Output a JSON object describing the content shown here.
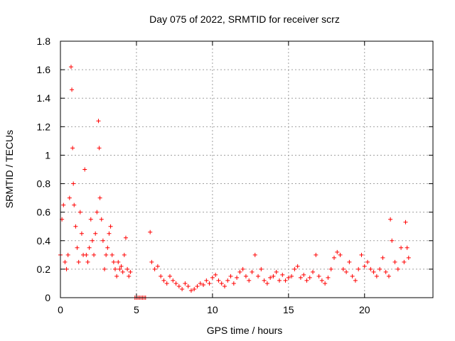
{
  "chart_data": {
    "type": "scatter",
    "title": "Day 075 of 2022, SRMTID for receiver scrz",
    "xlabel": "GPS time / hours",
    "ylabel": "SRMTID / TECUs",
    "xlim": [
      0,
      24.5
    ],
    "ylim": [
      0,
      1.8
    ],
    "xticks": [
      0,
      5,
      10,
      15,
      20
    ],
    "yticks": [
      0,
      0.2,
      0.4,
      0.6,
      0.8,
      1,
      1.2,
      1.4,
      1.6,
      1.8
    ],
    "xtick_labels": [
      "0",
      "5",
      "10",
      "15",
      "20"
    ],
    "ytick_labels": [
      "0",
      "0.2",
      "0.4",
      "0.6",
      "0.8",
      "1",
      "1.2",
      "1.4",
      "1.6",
      "1.8"
    ],
    "grid": true,
    "marker": "plus",
    "color": "#ff0000",
    "series": [
      {
        "name": "SRMTID",
        "x": [
          0.0,
          0.1,
          0.2,
          0.3,
          0.4,
          0.5,
          0.6,
          0.7,
          0.75,
          0.8,
          0.85,
          0.9,
          1.0,
          1.1,
          1.2,
          1.3,
          1.4,
          1.5,
          1.6,
          1.7,
          1.8,
          1.9,
          2.0,
          2.1,
          2.2,
          2.3,
          2.4,
          2.5,
          2.55,
          2.6,
          2.7,
          2.8,
          2.9,
          3.0,
          3.1,
          3.2,
          3.3,
          3.4,
          3.5,
          3.6,
          3.7,
          3.8,
          3.9,
          4.0,
          4.1,
          4.2,
          4.3,
          4.4,
          4.5,
          4.6,
          4.9,
          5.0,
          5.1,
          5.2,
          5.3,
          5.4,
          5.5,
          5.6,
          5.9,
          6.0,
          6.2,
          6.4,
          6.6,
          6.8,
          7.0,
          7.2,
          7.4,
          7.6,
          7.8,
          8.0,
          8.2,
          8.4,
          8.6,
          8.8,
          9.0,
          9.2,
          9.4,
          9.6,
          9.8,
          10.0,
          10.2,
          10.4,
          10.6,
          10.8,
          11.0,
          11.2,
          11.4,
          11.6,
          11.8,
          12.0,
          12.2,
          12.4,
          12.6,
          12.8,
          13.0,
          13.2,
          13.4,
          13.6,
          13.8,
          14.0,
          14.2,
          14.4,
          14.6,
          14.8,
          15.0,
          15.2,
          15.4,
          15.6,
          15.8,
          16.0,
          16.2,
          16.4,
          16.6,
          16.8,
          17.0,
          17.2,
          17.4,
          17.6,
          17.8,
          18.0,
          18.2,
          18.4,
          18.6,
          18.8,
          19.0,
          19.2,
          19.4,
          19.6,
          19.8,
          20.0,
          20.2,
          20.4,
          20.6,
          20.8,
          21.0,
          21.2,
          21.4,
          21.6,
          21.7,
          21.8,
          22.0,
          22.2,
          22.4,
          22.6,
          22.7,
          22.8,
          22.9
        ],
        "y": [
          0.3,
          0.55,
          0.65,
          0.25,
          0.2,
          0.3,
          0.7,
          1.62,
          1.46,
          1.05,
          0.8,
          0.65,
          0.5,
          0.35,
          0.25,
          0.6,
          0.45,
          0.3,
          0.9,
          0.3,
          0.25,
          0.35,
          0.55,
          0.4,
          0.3,
          0.45,
          0.6,
          1.24,
          1.05,
          0.7,
          0.55,
          0.4,
          0.2,
          0.3,
          0.35,
          0.45,
          0.5,
          0.3,
          0.25,
          0.2,
          0.15,
          0.25,
          0.2,
          0.22,
          0.18,
          0.3,
          0.42,
          0.2,
          0.15,
          0.18,
          0.0,
          0.0,
          0.0,
          0.0,
          0.0,
          0.0,
          0.0,
          0.0,
          0.46,
          0.25,
          0.2,
          0.22,
          0.15,
          0.12,
          0.1,
          0.15,
          0.12,
          0.1,
          0.08,
          0.06,
          0.1,
          0.08,
          0.05,
          0.06,
          0.08,
          0.1,
          0.09,
          0.12,
          0.1,
          0.14,
          0.16,
          0.12,
          0.1,
          0.08,
          0.12,
          0.15,
          0.1,
          0.14,
          0.18,
          0.2,
          0.15,
          0.12,
          0.18,
          0.3,
          0.15,
          0.2,
          0.12,
          0.1,
          0.14,
          0.15,
          0.18,
          0.12,
          0.16,
          0.12,
          0.14,
          0.15,
          0.2,
          0.22,
          0.14,
          0.16,
          0.12,
          0.14,
          0.18,
          0.3,
          0.15,
          0.12,
          0.1,
          0.14,
          0.2,
          0.28,
          0.32,
          0.3,
          0.2,
          0.18,
          0.25,
          0.15,
          0.12,
          0.2,
          0.3,
          0.22,
          0.25,
          0.2,
          0.18,
          0.15,
          0.2,
          0.28,
          0.18,
          0.15,
          0.55,
          0.4,
          0.25,
          0.2,
          0.35,
          0.25,
          0.53,
          0.35,
          0.28
        ]
      }
    ]
  }
}
